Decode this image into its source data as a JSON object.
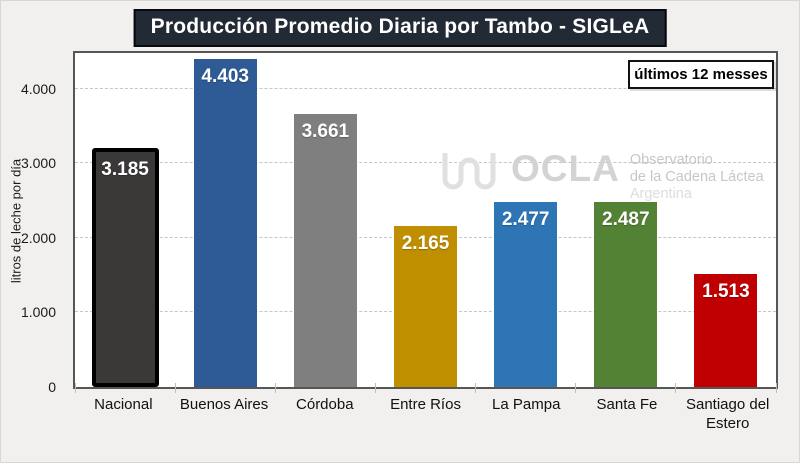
{
  "watermark": {
    "brand": "OCLA",
    "line1": "Observatorio",
    "line2": "de la Cadena Láctea",
    "line3": "Argentina"
  },
  "chart_data": {
    "type": "bar",
    "title": "Producción Promedio Diaria por Tambo - SIGLeA",
    "annotation": "últimos 12 messes",
    "categories": [
      "Nacional",
      "Buenos Aires",
      "Córdoba",
      "Entre Ríos",
      "La Pampa",
      "Santa Fe",
      "Santiago del Estero"
    ],
    "values": [
      3185,
      4403,
      3661,
      2165,
      2477,
      2487,
      1513
    ],
    "value_labels": [
      "3.185",
      "4.403",
      "3.661",
      "2.165",
      "2.477",
      "2.487",
      "1.513"
    ],
    "bar_colors": [
      "#3b3838",
      "#2e5a96",
      "#7f7f7f",
      "#bf8f00",
      "#2e75b6",
      "#548235",
      "#c00000"
    ],
    "highlight": {
      "index": 0,
      "border_color": "#000000",
      "border_px": 4
    },
    "xlabel": "",
    "ylabel": "litros de leche por día",
    "ylim": [
      0,
      4480
    ],
    "gridlines": [
      1000,
      2000,
      3000,
      4000
    ],
    "yticks": [
      {
        "value": 0,
        "label": "0"
      },
      {
        "value": 1000,
        "label": "1.000"
      },
      {
        "value": 2000,
        "label": "2.000"
      },
      {
        "value": 3000,
        "label": "3.000"
      },
      {
        "value": 4000,
        "label": "4.000"
      }
    ],
    "legend": "none",
    "grid": "horizontal-dashed"
  }
}
